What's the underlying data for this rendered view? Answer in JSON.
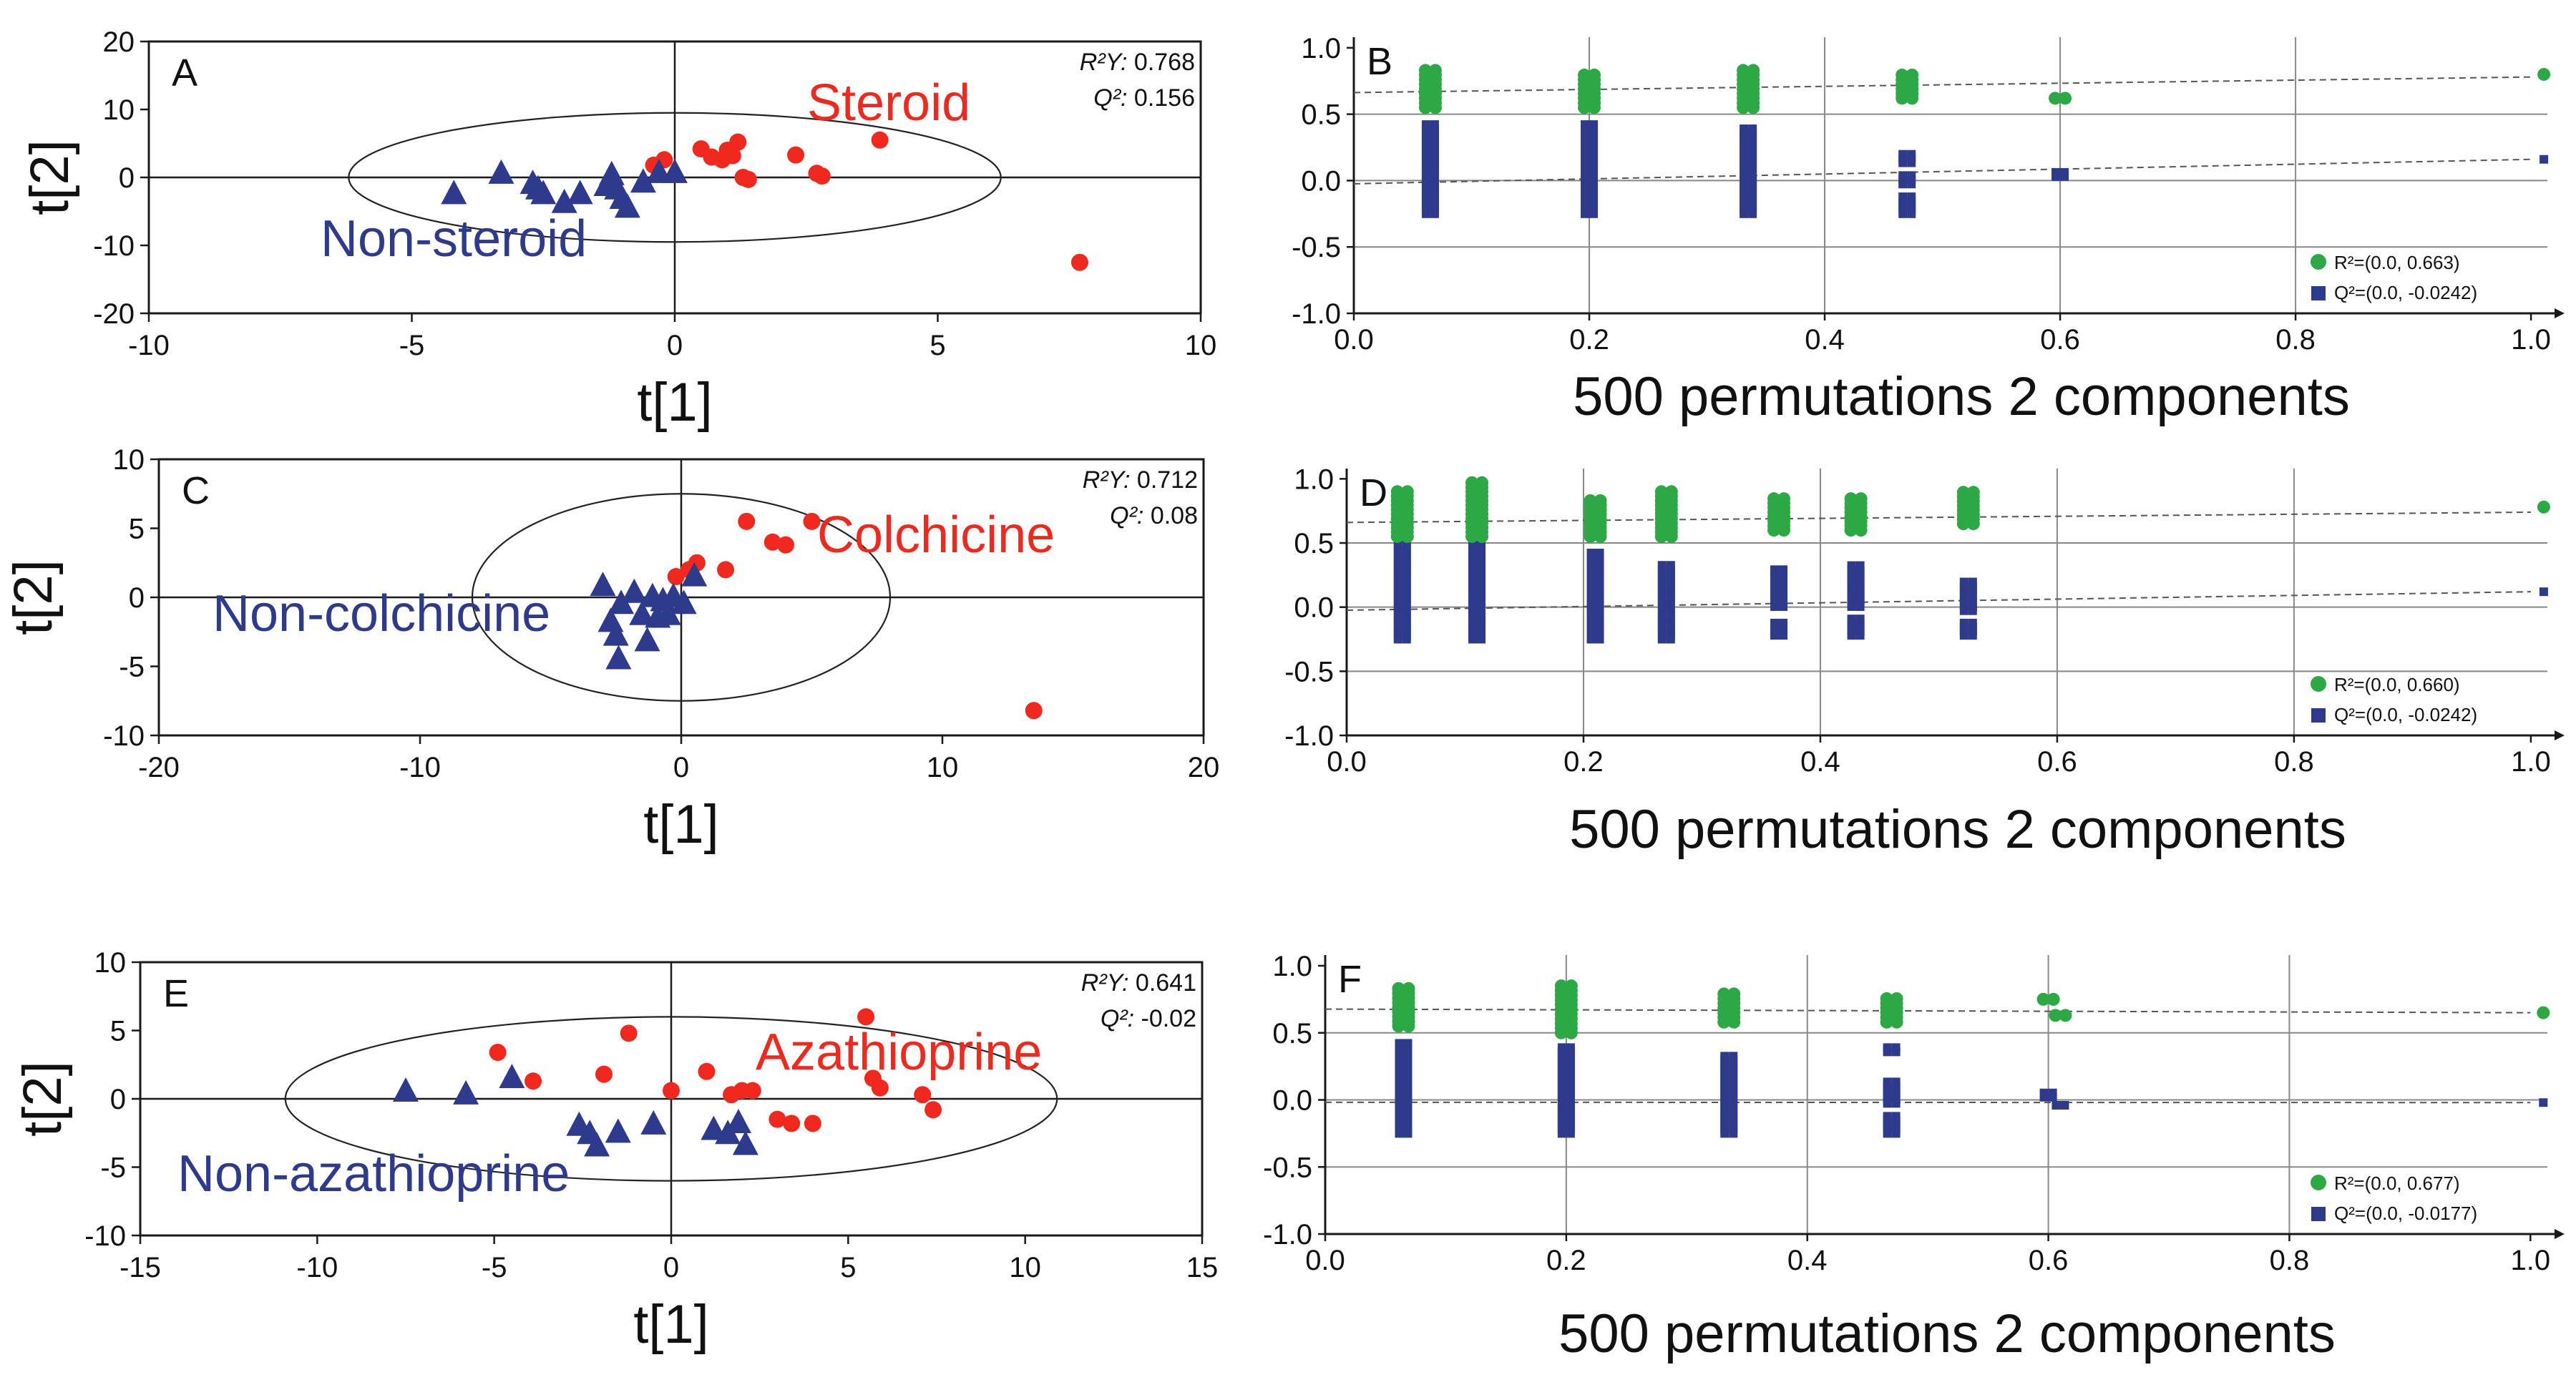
{
  "colors": {
    "red": "#f0281e",
    "blue": "#2e3a8c",
    "green": "#2ca845",
    "dash": "#555555",
    "axis": "#1a1a1a",
    "grid": "#888888"
  },
  "chart_data": [
    {
      "panel": "A",
      "type": "scatter",
      "xlim": [
        -10,
        10
      ],
      "ylim": [
        -20,
        20
      ],
      "xticks": [
        "-10",
        "-5",
        "0",
        "5",
        "10"
      ],
      "yticks": [
        "20",
        "10",
        "0",
        "-10",
        "-20"
      ],
      "xlabel": "t[1]",
      "ylabel": "t[2]",
      "stat1": {
        "label": "R²Y:",
        "value": "0.768"
      },
      "stat2": {
        "label": "Q²:",
        "value": "0.156"
      },
      "group_pos": "Steroid",
      "group_neg": "Non-steroid",
      "ellipse": {
        "cx": 0,
        "cy": 0,
        "rx": 6.2,
        "ry": 9.5
      },
      "series": [
        {
          "name": "Steroid",
          "marker": "circle",
          "points": [
            [
              -0.4,
              1.8
            ],
            [
              -0.2,
              2.6
            ],
            [
              0.5,
              4.2
            ],
            [
              0.7,
              3.0
            ],
            [
              0.9,
              2.6
            ],
            [
              1.0,
              4.0
            ],
            [
              1.1,
              3.2
            ],
            [
              1.2,
              5.2
            ],
            [
              1.3,
              0
            ],
            [
              1.4,
              -0.3
            ],
            [
              2.3,
              3.3
            ],
            [
              2.7,
              0.6
            ],
            [
              2.8,
              0.2
            ],
            [
              3.9,
              5.5
            ],
            [
              7.7,
              -12.5
            ]
          ]
        },
        {
          "name": "Non-steroid",
          "marker": "triangle",
          "points": [
            [
              -4.2,
              -2.5
            ],
            [
              -3.3,
              0.5
            ],
            [
              -2.7,
              -1.0
            ],
            [
              -2.6,
              -1.8
            ],
            [
              -2.5,
              -2.5
            ],
            [
              -2.1,
              -3.8
            ],
            [
              -1.8,
              -2.5
            ],
            [
              -1.3,
              -1.3
            ],
            [
              -1.2,
              0.3
            ],
            [
              -1.1,
              -1.8
            ],
            [
              -1.0,
              -3.2
            ],
            [
              -0.9,
              -4.5
            ],
            [
              -0.6,
              -0.8
            ],
            [
              -0.3,
              0.6
            ],
            [
              0,
              0.6
            ]
          ]
        }
      ]
    },
    {
      "panel": "C",
      "type": "scatter",
      "xlim": [
        -20,
        20
      ],
      "ylim": [
        -10,
        10
      ],
      "xticks": [
        "-20",
        "-10",
        "0",
        "10",
        "20"
      ],
      "yticks": [
        "10",
        "5",
        "0",
        "-5",
        "-10"
      ],
      "xlabel": "t[1]",
      "ylabel": "t[2]",
      "stat1": {
        "label": "R²Y:",
        "value": "0.712"
      },
      "stat2": {
        "label": "Q²:",
        "value": "0.08"
      },
      "group_pos": "Colchicine",
      "group_neg": "Non-colchicine",
      "ellipse": {
        "cx": 0,
        "cy": 0,
        "rx": 8.0,
        "ry": 7.5
      },
      "series": [
        {
          "name": "Colchicine",
          "marker": "circle",
          "points": [
            [
              -0.2,
              1.5
            ],
            [
              0.3,
              2.0
            ],
            [
              0.6,
              2.5
            ],
            [
              1.7,
              2.0
            ],
            [
              2.5,
              5.5
            ],
            [
              3.5,
              4.0
            ],
            [
              4.0,
              3.8
            ],
            [
              5.0,
              5.5
            ],
            [
              13.5,
              -8.2
            ]
          ]
        },
        {
          "name": "Non-colchicine",
          "marker": "triangle",
          "points": [
            [
              -3.0,
              0.8
            ],
            [
              -2.7,
              -1.8
            ],
            [
              -2.5,
              -2.8
            ],
            [
              -2.4,
              -4.5
            ],
            [
              -2.3,
              -0.5
            ],
            [
              -1.8,
              0.3
            ],
            [
              -1.5,
              -1.3
            ],
            [
              -1.3,
              -3.2
            ],
            [
              -1.1,
              0
            ],
            [
              -0.9,
              -1.5
            ],
            [
              -0.7,
              -0.3
            ],
            [
              -0.5,
              -1.3
            ],
            [
              -0.3,
              0
            ],
            [
              0.1,
              -0.5
            ],
            [
              0.5,
              1.5
            ]
          ]
        }
      ]
    },
    {
      "panel": "E",
      "type": "scatter",
      "xlim": [
        -15,
        15
      ],
      "ylim": [
        -10,
        10
      ],
      "xticks": [
        "-15",
        "-10",
        "-5",
        "0",
        "5",
        "10",
        "15"
      ],
      "yticks": [
        "10",
        "5",
        "0",
        "-5",
        "-10"
      ],
      "xlabel": "t[1]",
      "ylabel": "t[2]",
      "stat1": {
        "label": "R²Y:",
        "value": "0.641"
      },
      "stat2": {
        "label": "Q²:",
        "value": "-0.02"
      },
      "group_pos": "Azathioprine",
      "group_neg": "Non-azathioprine",
      "ellipse": {
        "cx": 0,
        "cy": 0,
        "rx": 10.9,
        "ry": 6.0
      },
      "series": [
        {
          "name": "Azathioprine",
          "marker": "circle",
          "points": [
            [
              -4.9,
              3.4
            ],
            [
              -3.9,
              1.3
            ],
            [
              -1.9,
              1.8
            ],
            [
              -1.2,
              4.8
            ],
            [
              0,
              0.6
            ],
            [
              1.0,
              2.0
            ],
            [
              1.7,
              0.3
            ],
            [
              2.0,
              0.6
            ],
            [
              2.3,
              0.6
            ],
            [
              3.0,
              -1.5
            ],
            [
              3.4,
              -1.8
            ],
            [
              4.0,
              -1.8
            ],
            [
              5.5,
              6.0
            ],
            [
              5.7,
              1.5
            ],
            [
              5.9,
              0.8
            ],
            [
              7.1,
              0.3
            ],
            [
              7.4,
              -0.8
            ]
          ]
        },
        {
          "name": "Non-azathioprine",
          "marker": "triangle",
          "points": [
            [
              -7.5,
              0.5
            ],
            [
              -5.8,
              0.3
            ],
            [
              -4.5,
              1.5
            ],
            [
              -2.6,
              -2.0
            ],
            [
              -2.3,
              -2.6
            ],
            [
              -2.1,
              -3.5
            ],
            [
              -1.5,
              -2.5
            ],
            [
              -0.5,
              -1.9
            ],
            [
              1.2,
              -2.3
            ],
            [
              1.6,
              -2.6
            ],
            [
              1.9,
              -1.8
            ],
            [
              2.1,
              -3.4
            ]
          ]
        }
      ]
    },
    {
      "panel": "B",
      "type": "scatter",
      "title": "",
      "xlim": [
        0,
        1.02
      ],
      "ylim": [
        -1.0,
        1.08
      ],
      "xticks": [
        "0.0",
        "0.2",
        "0.4",
        "0.6",
        "0.8",
        "1.0"
      ],
      "yticks": [
        "1.0",
        "0.5",
        "0.0",
        "-0.5",
        "-1.0"
      ],
      "xlabel": "500 permutations 2 components",
      "legend_r2": "R²=(0.0, 0.663)",
      "legend_q2": "Q²=(0.0, -0.0242)",
      "r2_line": [
        0.663,
        0.78
      ],
      "q2_line": [
        -0.0242,
        0.16
      ],
      "groups": [
        {
          "x": 0.065,
          "r2_min": 0.55,
          "r2_max": 0.85,
          "q2_min": -0.25,
          "q2_max": 0.45,
          "q2_gaps": []
        },
        {
          "x": 0.2,
          "r2_min": 0.55,
          "r2_max": 0.8,
          "q2_min": -0.25,
          "q2_max": 0.45,
          "q2_gaps": []
        },
        {
          "x": 0.335,
          "r2_min": 0.55,
          "r2_max": 0.85,
          "q2_min": -0.25,
          "q2_max": 0.42,
          "q2_gaps": []
        },
        {
          "x": 0.47,
          "r2_min": 0.62,
          "r2_max": 0.8,
          "q2_min": -0.25,
          "q2_max": 0.2,
          "q2_gaps": [
            [
              -0.12,
              -0.05
            ],
            [
              0.05,
              0.12
            ]
          ]
        },
        {
          "x": 0.6,
          "r2_min": 0.62,
          "r2_max": 0.62,
          "q2_min": 0.03,
          "q2_max": 0.07,
          "q2_gaps": []
        }
      ],
      "real": {
        "x": 1.0,
        "r2": 0.8,
        "q2": 0.16
      }
    },
    {
      "panel": "D",
      "type": "scatter",
      "xlim": [
        0,
        1.02
      ],
      "ylim": [
        -1.0,
        1.08
      ],
      "xticks": [
        "0.0",
        "0.2",
        "0.4",
        "0.6",
        "0.8",
        "1.0"
      ],
      "yticks": [
        "1.0",
        "0.5",
        "0.0",
        "-0.5",
        "-1.0"
      ],
      "xlabel": "500 permutations 2 components",
      "legend_r2": "R²=(0.0, 0.660)",
      "legend_q2": "Q²=(0.0, -0.0242)",
      "r2_line": [
        0.66,
        0.74
      ],
      "q2_line": [
        -0.0242,
        0.12
      ],
      "groups": [
        {
          "x": 0.047,
          "r2_min": 0.55,
          "r2_max": 0.9,
          "q2_min": -0.25,
          "q2_max": 0.5,
          "q2_gaps": []
        },
        {
          "x": 0.11,
          "r2_min": 0.55,
          "r2_max": 1.0,
          "q2_min": -0.25,
          "q2_max": 0.5,
          "q2_gaps": []
        },
        {
          "x": 0.21,
          "r2_min": 0.55,
          "r2_max": 0.85,
          "q2_min": -0.25,
          "q2_max": 0.45,
          "q2_gaps": []
        },
        {
          "x": 0.27,
          "r2_min": 0.55,
          "r2_max": 0.9,
          "q2_min": -0.25,
          "q2_max": 0.35,
          "q2_gaps": []
        },
        {
          "x": 0.365,
          "r2_min": 0.6,
          "r2_max": 0.85,
          "q2_min": -0.22,
          "q2_max": 0.3,
          "q2_gaps": [
            [
              -0.1,
              -0.02
            ]
          ]
        },
        {
          "x": 0.43,
          "r2_min": 0.6,
          "r2_max": 0.85,
          "q2_min": -0.22,
          "q2_max": 0.35,
          "q2_gaps": [
            [
              -0.08,
              0.0
            ]
          ]
        },
        {
          "x": 0.525,
          "r2_min": 0.65,
          "r2_max": 0.9,
          "q2_min": -0.22,
          "q2_max": 0.2,
          "q2_gaps": [
            [
              -0.1,
              -0.05
            ]
          ]
        }
      ],
      "real": {
        "x": 1.0,
        "r2": 0.78,
        "q2": 0.12
      }
    },
    {
      "panel": "F",
      "type": "scatter",
      "xlim": [
        0,
        1.02
      ],
      "ylim": [
        -1.0,
        1.08
      ],
      "xticks": [
        "0.0",
        "0.2",
        "0.4",
        "0.6",
        "0.8",
        "1.0"
      ],
      "yticks": [
        "1.0",
        "0.5",
        "0.0",
        "-0.5",
        "-1.0"
      ],
      "xlabel": "500 permutations 2 components",
      "legend_r2": "R²=(0.0, 0.677)",
      "legend_q2": "Q²=(0.0, -0.0177)",
      "r2_line": [
        0.677,
        0.65
      ],
      "q2_line": [
        -0.0177,
        -0.02
      ],
      "groups": [
        {
          "x": 0.065,
          "r2_min": 0.55,
          "r2_max": 0.85,
          "q2_min": -0.25,
          "q2_max": 0.45,
          "q2_gaps": []
        },
        {
          "x": 0.2,
          "r2_min": 0.5,
          "r2_max": 0.85,
          "q2_min": -0.25,
          "q2_max": 0.4,
          "q2_gaps": []
        },
        {
          "x": 0.335,
          "r2_min": 0.58,
          "r2_max": 0.8,
          "q2_min": -0.25,
          "q2_max": 0.35,
          "q2_gaps": []
        },
        {
          "x": 0.47,
          "r2_min": 0.58,
          "r2_max": 0.78,
          "q2_min": -0.25,
          "q2_max": 0.4,
          "q2_gaps": [
            [
              -0.1,
              -0.03
            ],
            [
              0.15,
              0.35
            ]
          ]
        },
        {
          "x": 0.6,
          "r2_min": 0.75,
          "r2_max": 0.75,
          "q2_min": 0.02,
          "q2_max": 0.06,
          "q2_gaps": []
        },
        {
          "x": 0.61,
          "r2_min": 0.63,
          "r2_max": 0.63,
          "q2_min": -0.04,
          "q2_max": -0.01,
          "q2_gaps": []
        }
      ],
      "real": {
        "x": 1.0,
        "r2": 0.65,
        "q2": -0.02
      }
    }
  ]
}
